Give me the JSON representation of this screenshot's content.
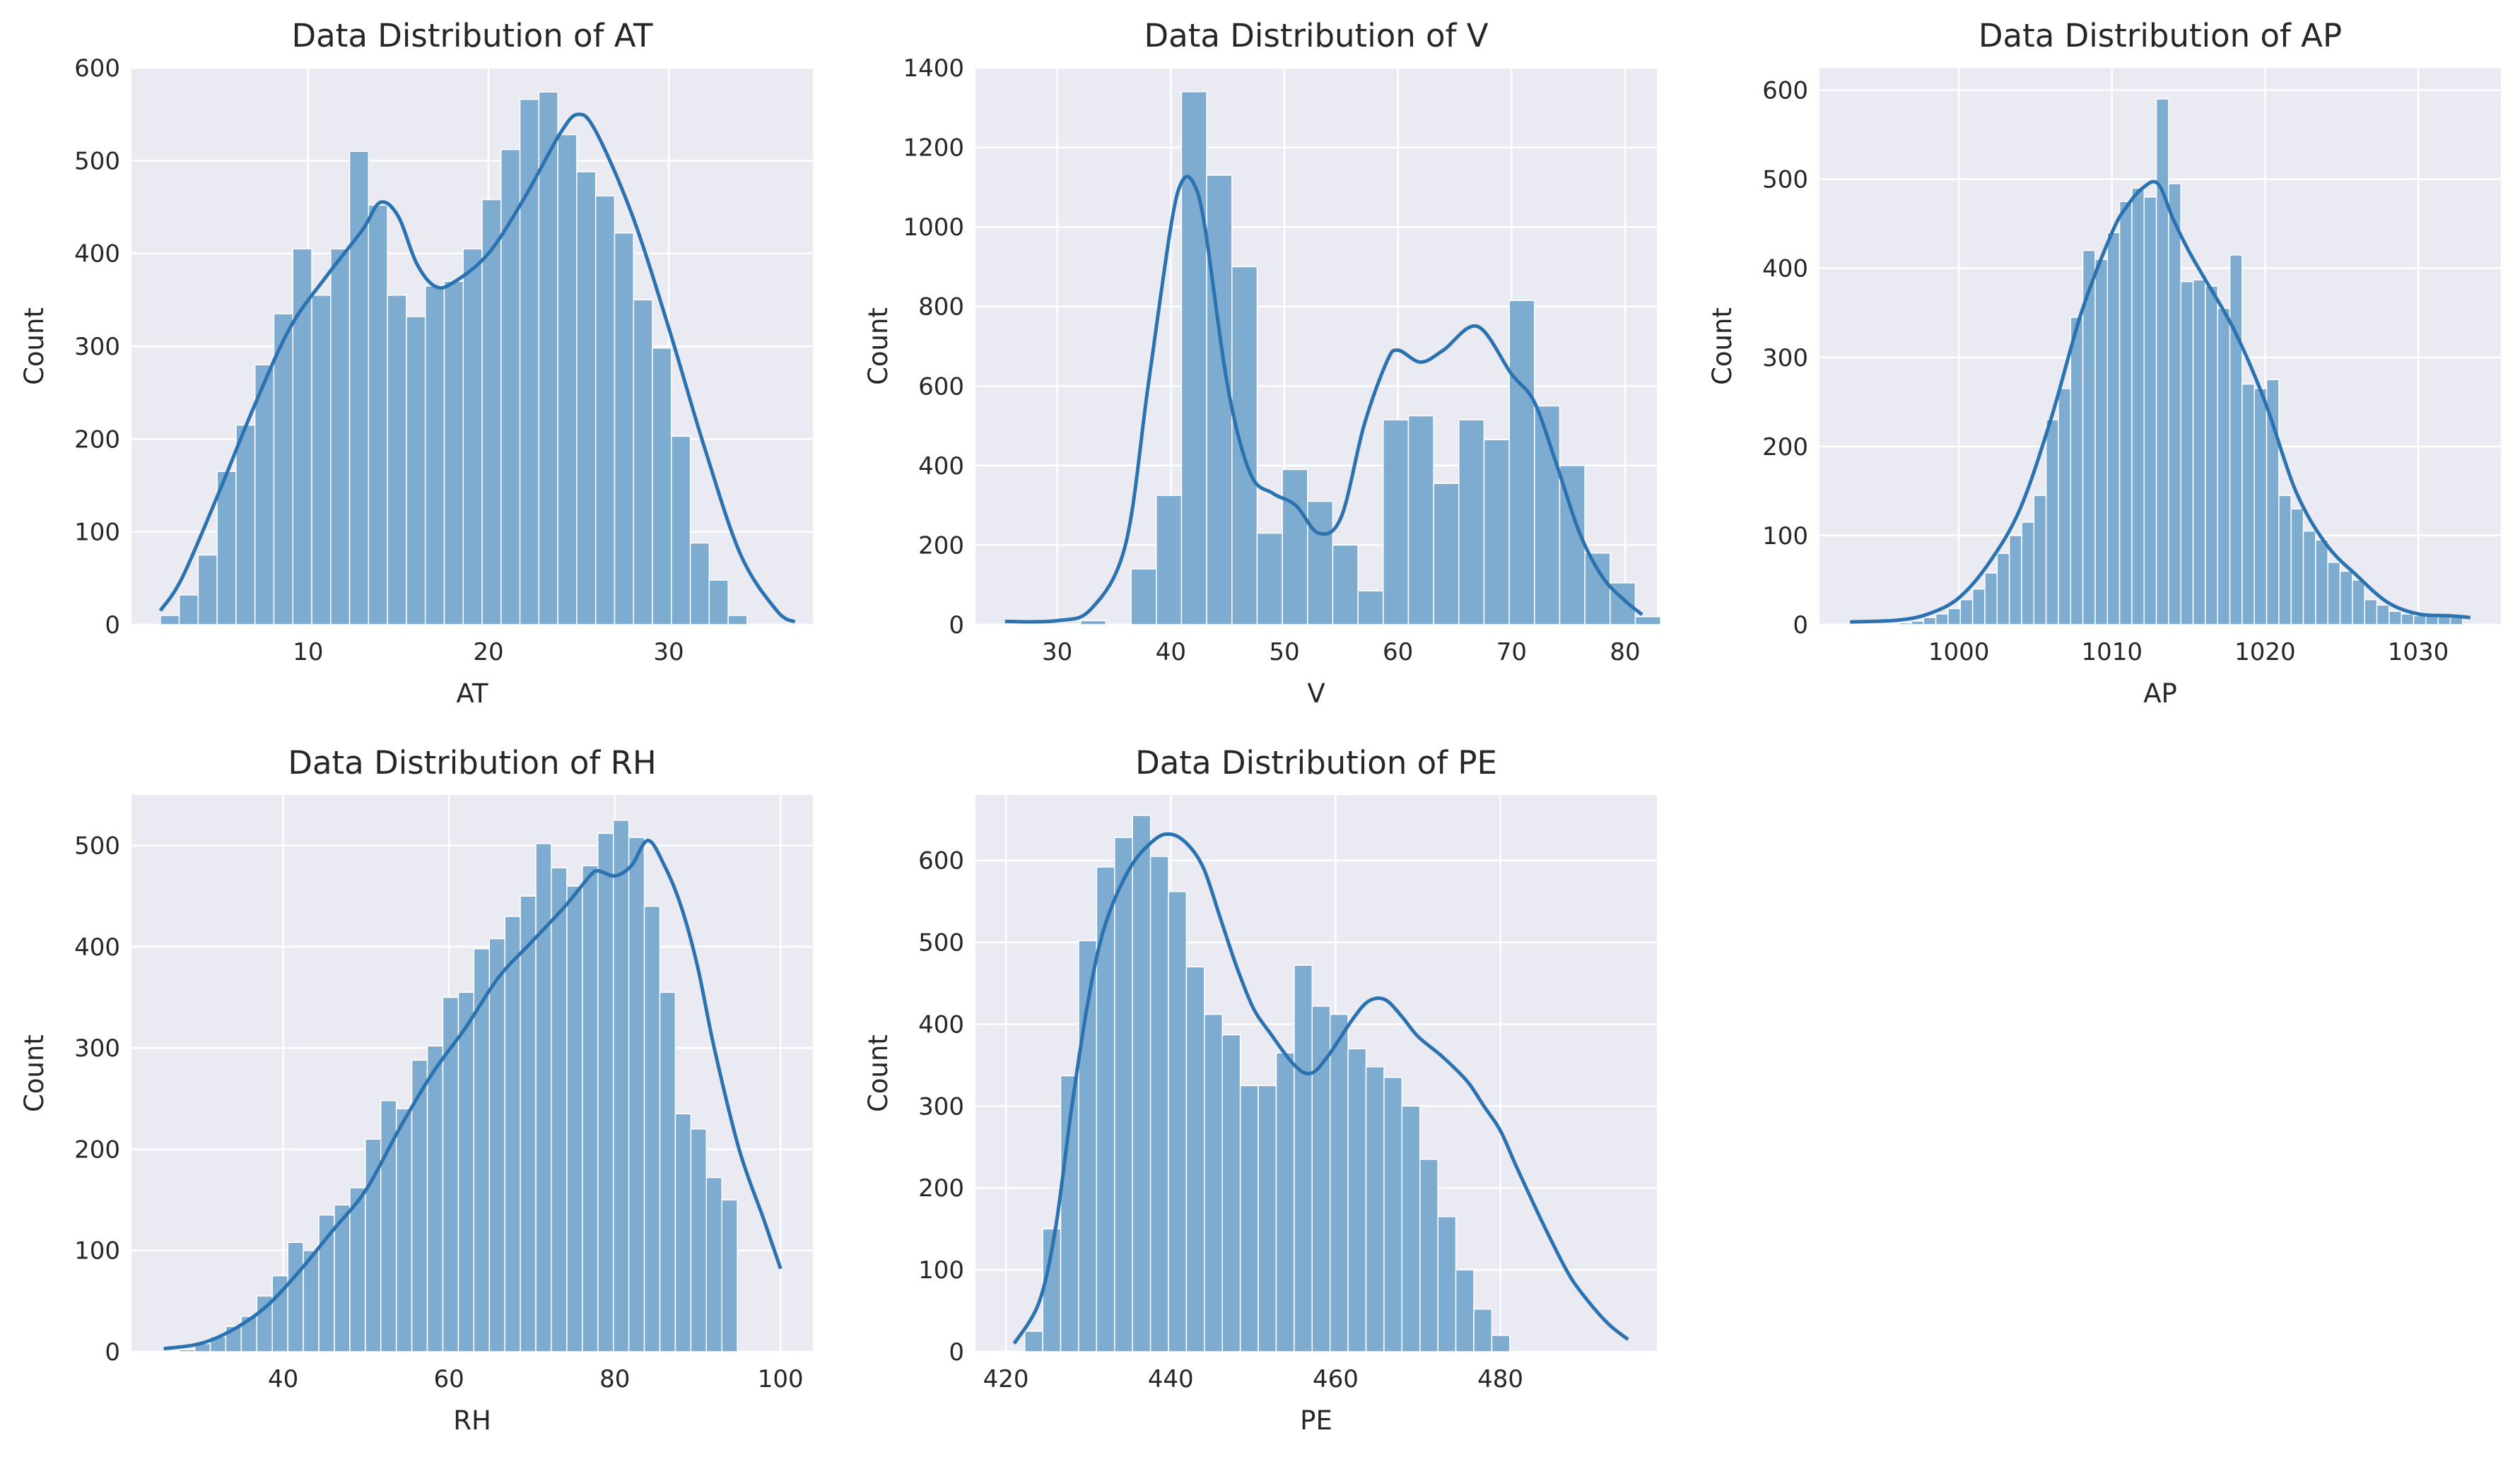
{
  "colors": {
    "bar": "#7eabd0",
    "kde": "#2b72b0",
    "background": "#eaeaf2",
    "grid": "#ffffff"
  },
  "chart_data": [
    {
      "type": "histogram",
      "title": "Data Distribution of AT",
      "xlabel": "AT",
      "ylabel": "Count",
      "xlim": [
        0.2,
        38.0
      ],
      "ylim": [
        0,
        600
      ],
      "xticks": [
        10,
        20,
        30
      ],
      "yticks": [
        0,
        100,
        200,
        300,
        400,
        500,
        600
      ],
      "grid": true,
      "bin_start": 1.8,
      "bin_width": 1.05,
      "counts": [
        10,
        32,
        75,
        165,
        215,
        280,
        335,
        405,
        355,
        405,
        510,
        452,
        355,
        332,
        365,
        370,
        405,
        458,
        512,
        566,
        574,
        528,
        488,
        462,
        422,
        350,
        298,
        203,
        88,
        48,
        10
      ],
      "kde": [
        [
          1.8,
          15
        ],
        [
          3,
          50
        ],
        [
          5,
          140
        ],
        [
          7,
          235
        ],
        [
          9,
          320
        ],
        [
          11,
          375
        ],
        [
          13,
          425
        ],
        [
          14,
          455
        ],
        [
          15,
          440
        ],
        [
          16,
          390
        ],
        [
          17,
          365
        ],
        [
          18,
          368
        ],
        [
          20,
          400
        ],
        [
          22,
          460
        ],
        [
          24,
          530
        ],
        [
          25,
          550
        ],
        [
          26,
          530
        ],
        [
          28,
          440
        ],
        [
          30,
          320
        ],
        [
          32,
          190
        ],
        [
          34,
          75
        ],
        [
          36,
          15
        ],
        [
          37,
          3
        ]
      ]
    },
    {
      "type": "histogram",
      "title": "Data Distribution of V",
      "xlabel": "V",
      "ylabel": "Count",
      "xlim": [
        22.8,
        82.8
      ],
      "ylim": [
        0,
        1400
      ],
      "xticks": [
        30,
        40,
        50,
        60,
        70,
        80
      ],
      "yticks": [
        0,
        200,
        400,
        600,
        800,
        1000,
        1200,
        1400
      ],
      "grid": true,
      "bin_start": 25.4,
      "bin_width": 2.22,
      "counts": [
        0,
        0,
        0,
        10,
        0,
        140,
        325,
        1340,
        1130,
        900,
        230,
        390,
        310,
        200,
        85,
        515,
        525,
        355,
        515,
        465,
        815,
        550,
        400,
        180,
        105,
        20
      ],
      "kde": [
        [
          25.4,
          8
        ],
        [
          30,
          10
        ],
        [
          33,
          40
        ],
        [
          36,
          200
        ],
        [
          38,
          600
        ],
        [
          40,
          1000
        ],
        [
          41,
          1115
        ],
        [
          42,
          1110
        ],
        [
          43,
          1000
        ],
        [
          45,
          600
        ],
        [
          47,
          380
        ],
        [
          49,
          330
        ],
        [
          51,
          300
        ],
        [
          53,
          230
        ],
        [
          55,
          270
        ],
        [
          57,
          500
        ],
        [
          59,
          660
        ],
        [
          60,
          690
        ],
        [
          62,
          660
        ],
        [
          64,
          690
        ],
        [
          67,
          750
        ],
        [
          70,
          630
        ],
        [
          72,
          560
        ],
        [
          74,
          400
        ],
        [
          76,
          230
        ],
        [
          78,
          120
        ],
        [
          80,
          60
        ],
        [
          81.5,
          25
        ]
      ]
    },
    {
      "type": "histogram",
      "title": "Data Distribution of AP",
      "xlabel": "AP",
      "ylabel": "Count",
      "xlim": [
        990.9,
        1035.4
      ],
      "ylim": [
        0,
        625
      ],
      "xticks": [
        1000,
        1010,
        1020,
        1030
      ],
      "yticks": [
        0,
        100,
        200,
        300,
        400,
        500,
        600
      ],
      "grid": true,
      "bin_start": 992.9,
      "bin_width": 0.8,
      "counts": [
        0,
        0,
        0,
        0,
        2,
        4,
        8,
        12,
        18,
        28,
        40,
        58,
        80,
        100,
        115,
        145,
        230,
        265,
        345,
        420,
        410,
        440,
        475,
        490,
        480,
        590,
        495,
        385,
        387,
        380,
        355,
        415,
        270,
        265,
        275,
        145,
        130,
        105,
        95,
        70,
        60,
        50,
        28,
        22,
        15,
        12,
        10,
        10,
        10,
        10
      ],
      "kde": [
        [
          992.9,
          3
        ],
        [
          996,
          5
        ],
        [
          998,
          12
        ],
        [
          1000,
          30
        ],
        [
          1002,
          70
        ],
        [
          1004,
          130
        ],
        [
          1006,
          230
        ],
        [
          1008,
          350
        ],
        [
          1010,
          440
        ],
        [
          1011,
          470
        ],
        [
          1012,
          490
        ],
        [
          1013,
          495
        ],
        [
          1014,
          455
        ],
        [
          1015,
          420
        ],
        [
          1016,
          390
        ],
        [
          1018,
          330
        ],
        [
          1020,
          250
        ],
        [
          1022,
          150
        ],
        [
          1024,
          90
        ],
        [
          1026,
          55
        ],
        [
          1028,
          25
        ],
        [
          1030,
          12
        ],
        [
          1032,
          10
        ],
        [
          1033.4,
          8
        ]
      ]
    },
    {
      "type": "histogram",
      "title": "Data Distribution of RH",
      "xlabel": "RH",
      "ylabel": "Count",
      "xlim": [
        21.7,
        103.9
      ],
      "ylim": [
        0,
        550
      ],
      "xticks": [
        40,
        60,
        80,
        100
      ],
      "yticks": [
        0,
        100,
        200,
        300,
        400,
        500
      ],
      "grid": true,
      "bin_start": 25.6,
      "bin_width": 1.87,
      "counts": [
        0,
        2,
        8,
        15,
        25,
        35,
        55,
        75,
        108,
        100,
        135,
        145,
        162,
        210,
        248,
        240,
        288,
        302,
        350,
        355,
        398,
        408,
        430,
        450,
        502,
        478,
        460,
        480,
        512,
        525,
        508,
        440,
        355,
        235,
        220,
        172,
        150
      ],
      "kde": [
        [
          25.6,
          3
        ],
        [
          30,
          8
        ],
        [
          34,
          22
        ],
        [
          38,
          45
        ],
        [
          42,
          80
        ],
        [
          46,
          120
        ],
        [
          50,
          160
        ],
        [
          54,
          220
        ],
        [
          58,
          275
        ],
        [
          62,
          320
        ],
        [
          66,
          370
        ],
        [
          70,
          405
        ],
        [
          74,
          440
        ],
        [
          77,
          470
        ],
        [
          78,
          475
        ],
        [
          80,
          470
        ],
        [
          82,
          480
        ],
        [
          84,
          505
        ],
        [
          86,
          480
        ],
        [
          88,
          440
        ],
        [
          90,
          380
        ],
        [
          92,
          300
        ],
        [
          95,
          200
        ],
        [
          98,
          130
        ],
        [
          100,
          82
        ]
      ]
    },
    {
      "type": "histogram",
      "title": "Data Distribution of PE",
      "xlabel": "PE",
      "ylabel": "Count",
      "xlim": [
        416.3,
        499.0
      ],
      "ylim": [
        0,
        680
      ],
      "xticks": [
        420,
        440,
        460,
        480
      ],
      "yticks": [
        0,
        100,
        200,
        300,
        400,
        500,
        600
      ],
      "grid": true,
      "bin_start": 420.1,
      "bin_width": 2.18,
      "counts": [
        0,
        25,
        150,
        337,
        502,
        592,
        628,
        655,
        605,
        562,
        470,
        412,
        387,
        325,
        325,
        365,
        472,
        422,
        412,
        370,
        348,
        335,
        300,
        235,
        165,
        100,
        52,
        20
      ],
      "kde": [
        [
          421,
          10
        ],
        [
          424,
          60
        ],
        [
          426,
          150
        ],
        [
          428,
          300
        ],
        [
          430,
          430
        ],
        [
          432,
          520
        ],
        [
          435,
          590
        ],
        [
          438,
          625
        ],
        [
          440,
          632
        ],
        [
          442,
          620
        ],
        [
          444,
          590
        ],
        [
          446,
          530
        ],
        [
          448,
          470
        ],
        [
          450,
          420
        ],
        [
          452,
          390
        ],
        [
          455,
          350
        ],
        [
          457,
          340
        ],
        [
          459,
          360
        ],
        [
          462,
          405
        ],
        [
          464,
          428
        ],
        [
          466,
          430
        ],
        [
          468,
          410
        ],
        [
          470,
          385
        ],
        [
          473,
          360
        ],
        [
          476,
          330
        ],
        [
          478,
          300
        ],
        [
          480,
          270
        ],
        [
          482,
          225
        ],
        [
          485,
          160
        ],
        [
          488,
          100
        ],
        [
          490,
          70
        ],
        [
          493,
          35
        ],
        [
          495.5,
          15
        ]
      ]
    }
  ]
}
